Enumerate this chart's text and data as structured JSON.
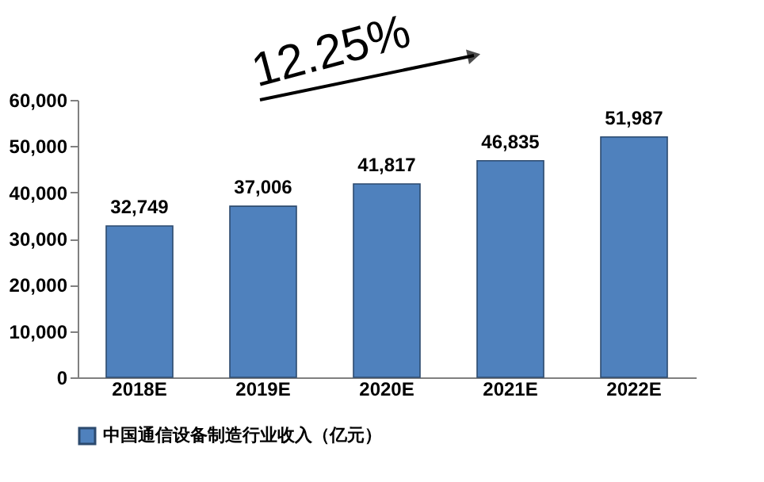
{
  "chart_data": {
    "type": "bar",
    "categories": [
      "2018E",
      "2019E",
      "2020E",
      "2021E",
      "2022E"
    ],
    "series": [
      {
        "name": "中国通信设备制造行业收入（亿元）",
        "color": "#4f81bd",
        "values": [
          32749,
          37006,
          41817,
          46835,
          51987
        ],
        "value_labels": [
          "32,749",
          "37,006",
          "41,817",
          "46,835",
          "51,987"
        ]
      }
    ],
    "ylim": [
      0,
      60000
    ],
    "yticks": [
      {
        "value": 0,
        "label": "0"
      },
      {
        "value": 10000,
        "label": "10,000"
      },
      {
        "value": 20000,
        "label": "20,000"
      },
      {
        "value": 30000,
        "label": "30,000"
      },
      {
        "value": 40000,
        "label": "40,000"
      },
      {
        "value": 50000,
        "label": "50,000"
      },
      {
        "value": 60000,
        "label": "60,000"
      }
    ],
    "grid": false,
    "legend": "bottom",
    "annotations": [
      "12.25%"
    ]
  }
}
